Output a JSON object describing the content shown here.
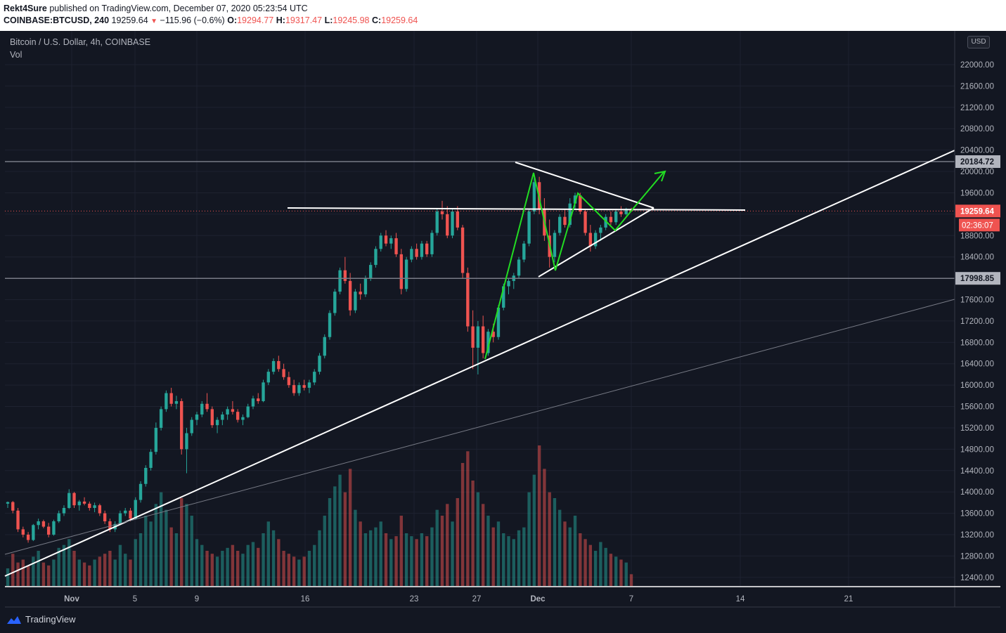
{
  "header": {
    "author": "Rekt4Sure",
    "published_text": " published on TradingView.com, December 07, 2020 05:23:54 UTC",
    "symbol": "COINBASE:BTCUSD, 240",
    "last_price": "19259.64",
    "change": "−115.96 (−0.6%)",
    "open_label": "O:",
    "open": "19294.77",
    "high_label": "H:",
    "high": "19317.47",
    "low_label": "L:",
    "low": "19245.98",
    "close_label": "C:",
    "close": "19259.64"
  },
  "legend": {
    "title": "Bitcoin / U.S. Dollar, 4h, COINBASE",
    "volume": "Vol"
  },
  "currency_badge": "USD",
  "footer": {
    "brand": "TradingView"
  },
  "chart_data": {
    "type": "candlestick",
    "x_ticks": [
      "Nov",
      "5",
      "9",
      "16",
      "23",
      "27",
      "Dec",
      "7",
      "14",
      "21"
    ],
    "y_ticks": [
      "12400.00",
      "12800.00",
      "13200.00",
      "13600.00",
      "14000.00",
      "14400.00",
      "14800.00",
      "15200.00",
      "15600.00",
      "16000.00",
      "16400.00",
      "16800.00",
      "17200.00",
      "17600.00",
      "18000.00",
      "18400.00",
      "18800.00",
      "19200.00",
      "19600.00",
      "20000.00",
      "20400.00",
      "20800.00",
      "21200.00",
      "21600.00",
      "22000.00"
    ],
    "ylim": [
      12200,
      22450
    ],
    "level_labels": [
      {
        "value": 20184.72,
        "text": "20184.72",
        "color": "#b2b5be"
      },
      {
        "value": 17998.85,
        "text": "17998.85",
        "color": "#b2b5be"
      },
      {
        "value": 19259.64,
        "text": "19259.64",
        "color": "#ef5350"
      }
    ],
    "countdown": "02:36:07",
    "up_color": "#26a69a",
    "down_color": "#ef5350",
    "candles": [
      [
        13780,
        13820,
        13700,
        13810
      ],
      [
        13810,
        13830,
        13600,
        13650
      ],
      [
        13650,
        13700,
        13250,
        13300
      ],
      [
        13300,
        13350,
        13150,
        13200
      ],
      [
        13200,
        13250,
        13050,
        13100
      ],
      [
        13100,
        13400,
        13080,
        13380
      ],
      [
        13380,
        13500,
        13300,
        13450
      ],
      [
        13450,
        13480,
        13320,
        13350
      ],
      [
        13350,
        13420,
        13150,
        13200
      ],
      [
        13200,
        13480,
        13180,
        13450
      ],
      [
        13450,
        13650,
        13420,
        13600
      ],
      [
        13600,
        13750,
        13550,
        13700
      ],
      [
        13700,
        14050,
        13680,
        13980
      ],
      [
        13980,
        14000,
        13700,
        13750
      ],
      [
        13750,
        13850,
        13650,
        13820
      ],
      [
        13820,
        13900,
        13750,
        13780
      ],
      [
        13780,
        13820,
        13650,
        13700
      ],
      [
        13700,
        13800,
        13620,
        13750
      ],
      [
        13750,
        13780,
        13550,
        13600
      ],
      [
        13600,
        13650,
        13400,
        13450
      ],
      [
        13450,
        13500,
        13250,
        13300
      ],
      [
        13300,
        13450,
        13250,
        13400
      ],
      [
        13400,
        13650,
        13380,
        13600
      ],
      [
        13600,
        13700,
        13550,
        13650
      ],
      [
        13650,
        13700,
        13450,
        13500
      ],
      [
        13500,
        13900,
        13480,
        13850
      ],
      [
        13850,
        14200,
        13800,
        14150
      ],
      [
        14150,
        14500,
        14100,
        14450
      ],
      [
        14450,
        14800,
        14400,
        14750
      ],
      [
        14750,
        15300,
        14700,
        15200
      ],
      [
        15200,
        15600,
        15150,
        15550
      ],
      [
        15550,
        15900,
        15500,
        15850
      ],
      [
        15850,
        15950,
        15600,
        15650
      ],
      [
        15650,
        15800,
        15550,
        15700
      ],
      [
        15700,
        15750,
        14700,
        14800
      ],
      [
        14800,
        15200,
        14350,
        15100
      ],
      [
        15100,
        15400,
        15050,
        15350
      ],
      [
        15350,
        15500,
        15250,
        15450
      ],
      [
        15450,
        15700,
        15400,
        15650
      ],
      [
        15650,
        15850,
        15500,
        15550
      ],
      [
        15550,
        15600,
        15200,
        15250
      ],
      [
        15250,
        15400,
        15100,
        15350
      ],
      [
        15350,
        15500,
        15250,
        15450
      ],
      [
        15450,
        15600,
        15350,
        15550
      ],
      [
        15550,
        15700,
        15450,
        15500
      ],
      [
        15500,
        15550,
        15300,
        15350
      ],
      [
        15350,
        15450,
        15250,
        15400
      ],
      [
        15400,
        15650,
        15380,
        15600
      ],
      [
        15600,
        15800,
        15550,
        15750
      ],
      [
        15750,
        15850,
        15650,
        15700
      ],
      [
        15700,
        16100,
        15680,
        16050
      ],
      [
        16050,
        16300,
        16000,
        16250
      ],
      [
        16250,
        16500,
        16200,
        16450
      ],
      [
        16450,
        16550,
        16250,
        16300
      ],
      [
        16300,
        16400,
        16100,
        16150
      ],
      [
        16150,
        16250,
        15950,
        16000
      ],
      [
        16000,
        16100,
        15800,
        15850
      ],
      [
        15850,
        16050,
        15800,
        16000
      ],
      [
        16000,
        16100,
        15900,
        15950
      ],
      [
        15950,
        16100,
        15850,
        16050
      ],
      [
        16050,
        16300,
        16000,
        16250
      ],
      [
        16250,
        16600,
        16200,
        16550
      ],
      [
        16550,
        16950,
        16500,
        16900
      ],
      [
        16900,
        17400,
        16850,
        17350
      ],
      [
        17350,
        17800,
        17300,
        17750
      ],
      [
        17750,
        18200,
        17700,
        18150
      ],
      [
        18150,
        18400,
        17900,
        17950
      ],
      [
        17950,
        18100,
        17300,
        17400
      ],
      [
        17400,
        17800,
        17350,
        17750
      ],
      [
        17750,
        17900,
        17600,
        17700
      ],
      [
        17700,
        18050,
        17650,
        18000
      ],
      [
        18000,
        18300,
        17950,
        18250
      ],
      [
        18250,
        18600,
        18200,
        18550
      ],
      [
        18550,
        18850,
        18500,
        18800
      ],
      [
        18800,
        18900,
        18600,
        18650
      ],
      [
        18650,
        18800,
        18550,
        18750
      ],
      [
        18750,
        18850,
        18400,
        18450
      ],
      [
        18450,
        18550,
        17700,
        17800
      ],
      [
        17800,
        18400,
        17750,
        18350
      ],
      [
        18350,
        18600,
        18300,
        18550
      ],
      [
        18550,
        18650,
        18350,
        18400
      ],
      [
        18400,
        18700,
        18350,
        18650
      ],
      [
        18650,
        18700,
        18400,
        18450
      ],
      [
        18450,
        18900,
        18400,
        18850
      ],
      [
        18850,
        19300,
        18800,
        19250
      ],
      [
        19250,
        19450,
        19100,
        19200
      ],
      [
        19200,
        19350,
        18750,
        18800
      ],
      [
        18800,
        19300,
        18750,
        19250
      ],
      [
        19250,
        19350,
        18900,
        18950
      ],
      [
        18950,
        19000,
        18000,
        18100
      ],
      [
        18100,
        18200,
        17000,
        17100
      ],
      [
        17100,
        17400,
        16300,
        16700
      ],
      [
        16700,
        17200,
        16200,
        17100
      ],
      [
        17100,
        17300,
        16500,
        16600
      ],
      [
        16600,
        17050,
        16550,
        17000
      ],
      [
        17000,
        17150,
        16800,
        16900
      ],
      [
        16900,
        17500,
        16850,
        17450
      ],
      [
        17450,
        17900,
        17400,
        17850
      ],
      [
        17850,
        18000,
        17700,
        17950
      ],
      [
        17950,
        18100,
        17800,
        18050
      ],
      [
        18050,
        18400,
        18000,
        18350
      ],
      [
        18350,
        18700,
        18300,
        18650
      ],
      [
        18650,
        19300,
        18600,
        19250
      ],
      [
        19250,
        19900,
        19200,
        19800
      ],
      [
        19800,
        19900,
        19200,
        19300
      ],
      [
        19300,
        19500,
        18700,
        18800
      ],
      [
        18800,
        19100,
        18200,
        18400
      ],
      [
        18400,
        18900,
        18300,
        18850
      ],
      [
        18850,
        19200,
        18800,
        19150
      ],
      [
        19150,
        19300,
        18950,
        19000
      ],
      [
        19000,
        19500,
        18950,
        19400
      ],
      [
        19400,
        19600,
        19300,
        19550
      ],
      [
        19550,
        19600,
        19200,
        19250
      ],
      [
        19250,
        19300,
        18800,
        18850
      ],
      [
        18850,
        19000,
        18500,
        18600
      ],
      [
        18600,
        18900,
        18550,
        18850
      ],
      [
        18850,
        19000,
        18700,
        18950
      ],
      [
        18950,
        19200,
        18900,
        19150
      ],
      [
        19150,
        19250,
        19000,
        19050
      ],
      [
        19050,
        19300,
        19000,
        19250
      ],
      [
        19250,
        19350,
        19150,
        19200
      ],
      [
        19200,
        19320,
        19180,
        19300
      ],
      [
        19295,
        19320,
        19246,
        19260
      ]
    ],
    "volumes": [
      30,
      55,
      40,
      45,
      35,
      50,
      60,
      40,
      35,
      45,
      65,
      70,
      80,
      60,
      45,
      40,
      35,
      45,
      50,
      55,
      60,
      45,
      70,
      55,
      45,
      80,
      90,
      120,
      110,
      140,
      160,
      130,
      100,
      90,
      150,
      140,
      120,
      80,
      70,
      60,
      55,
      50,
      60,
      65,
      70,
      60,
      55,
      70,
      75,
      65,
      90,
      110,
      95,
      80,
      60,
      55,
      50,
      45,
      50,
      60,
      70,
      95,
      120,
      150,
      170,
      190,
      160,
      200,
      130,
      110,
      90,
      95,
      100,
      110,
      90,
      80,
      85,
      120,
      90,
      85,
      80,
      90,
      85,
      100,
      130,
      120,
      140,
      110,
      150,
      210,
      230,
      180,
      160,
      140,
      120,
      100,
      110,
      90,
      85,
      80,
      95,
      100,
      160,
      190,
      240,
      200,
      160,
      150,
      130,
      110,
      100,
      120,
      90,
      80,
      70,
      60,
      75,
      65,
      55,
      50,
      45,
      40,
      20
    ]
  }
}
